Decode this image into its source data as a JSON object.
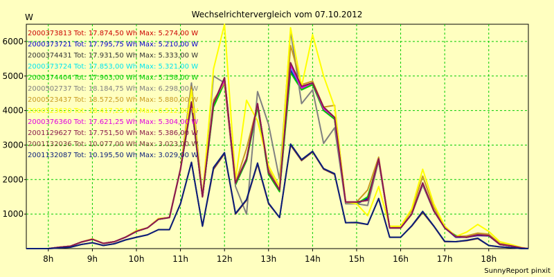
{
  "chart_data": {
    "type": "line",
    "title": "Wechselrichtervergleich vom 07.10.2012",
    "ylabel": "W",
    "xlabel": "",
    "footer": "SunnyReport pinxit",
    "ylim": [
      0,
      6500
    ],
    "xlim": [
      7.5,
      18.9
    ],
    "y_ticks": [
      1000,
      2000,
      3000,
      4000,
      5000,
      6000
    ],
    "x_ticks": [
      {
        "value": 8,
        "label": "8h"
      },
      {
        "value": 9,
        "label": "9h"
      },
      {
        "value": 10,
        "label": "10h"
      },
      {
        "value": 11,
        "label": "11h"
      },
      {
        "value": 12,
        "label": "12h"
      },
      {
        "value": 13,
        "label": "13h"
      },
      {
        "value": 14,
        "label": "14h"
      },
      {
        "value": 15,
        "label": "15h"
      },
      {
        "value": 16,
        "label": "16h"
      },
      {
        "value": 17,
        "label": "17h"
      },
      {
        "value": 18,
        "label": "18h"
      }
    ],
    "grid": true,
    "legend_position": "top-left",
    "x": [
      7.5,
      7.75,
      8.0,
      8.25,
      8.5,
      8.75,
      9.0,
      9.25,
      9.5,
      9.75,
      10.0,
      10.25,
      10.5,
      10.75,
      11.0,
      11.25,
      11.5,
      11.75,
      12.0,
      12.25,
      12.5,
      12.75,
      13.0,
      13.25,
      13.5,
      13.75,
      14.0,
      14.25,
      14.5,
      14.75,
      15.0,
      15.25,
      15.5,
      15.75,
      16.0,
      16.25,
      16.5,
      16.75,
      17.0,
      17.25,
      17.5,
      17.75,
      18.0,
      18.25,
      18.5,
      18.75,
      18.9
    ],
    "series": [
      {
        "name": "2000373813 Tot: 17.874,50 Wh Max: 5.274,00 W",
        "color": "#cc0000",
        "values": [
          0,
          0,
          0,
          40,
          70,
          190,
          270,
          150,
          200,
          330,
          500,
          600,
          850,
          900,
          2300,
          4200,
          1500,
          4200,
          4900,
          1900,
          2600,
          4200,
          2200,
          1700,
          5200,
          4650,
          4800,
          4050,
          3800,
          1350,
          1350,
          1400,
          2600,
          600,
          600,
          1000,
          1900,
          1100,
          600,
          350,
          330,
          400,
          380,
          120,
          80,
          20,
          0
        ]
      },
      {
        "name": "2000373721 Tot: 17.795,75 Wh Max: 5.210,00 W",
        "color": "#0000cc",
        "values": [
          0,
          0,
          0,
          40,
          70,
          190,
          270,
          150,
          200,
          330,
          500,
          600,
          850,
          900,
          2300,
          4200,
          1500,
          4150,
          4850,
          1850,
          2550,
          4150,
          2150,
          1700,
          5150,
          4600,
          4750,
          4000,
          3750,
          1350,
          1300,
          1450,
          2550,
          600,
          600,
          1000,
          1850,
          1100,
          600,
          330,
          330,
          380,
          370,
          120,
          80,
          20,
          0
        ]
      },
      {
        "name": "2000374431 Tot: 17.931,50 Wh Max: 5.333,00 W",
        "color": "#333333",
        "values": [
          0,
          0,
          0,
          40,
          70,
          190,
          270,
          150,
          200,
          330,
          500,
          600,
          850,
          900,
          2300,
          4250,
          1500,
          4200,
          4950,
          1900,
          2600,
          4200,
          2200,
          1700,
          5300,
          4700,
          4800,
          4100,
          3800,
          1350,
          1350,
          1400,
          2600,
          600,
          600,
          1000,
          1900,
          1100,
          600,
          350,
          330,
          400,
          380,
          120,
          80,
          20,
          0
        ]
      },
      {
        "name": "2000373724 Tot: 17.853,00 Wh Max: 5.321,00 W",
        "color": "#00e5ee",
        "values": [
          0,
          0,
          0,
          40,
          70,
          190,
          270,
          150,
          200,
          330,
          500,
          600,
          850,
          900,
          2300,
          4200,
          1500,
          4200,
          4900,
          1900,
          2600,
          4200,
          2200,
          1700,
          5250,
          4650,
          4800,
          4050,
          3800,
          1350,
          1350,
          1400,
          2600,
          600,
          600,
          1000,
          1900,
          1100,
          600,
          350,
          330,
          400,
          380,
          120,
          80,
          20,
          0
        ]
      },
      {
        "name": "2000374404 Tot: 17.903,00 Wh Max: 5.158,00 W",
        "color": "#00cc00",
        "values": [
          0,
          0,
          0,
          40,
          70,
          190,
          270,
          150,
          200,
          330,
          500,
          600,
          850,
          900,
          2300,
          4150,
          1500,
          4100,
          4800,
          1850,
          2550,
          4100,
          2150,
          1650,
          5100,
          4600,
          4750,
          4000,
          3750,
          1350,
          1300,
          1500,
          2550,
          600,
          600,
          1000,
          1850,
          1100,
          600,
          380,
          330,
          420,
          390,
          130,
          80,
          20,
          0
        ]
      },
      {
        "name": "2000502737 Tot: 18.184,75 Wh Max: 6.298,00 W",
        "color": "#808080",
        "values": [
          0,
          0,
          0,
          40,
          70,
          190,
          280,
          150,
          200,
          330,
          520,
          600,
          870,
          900,
          2300,
          4800,
          1500,
          5000,
          4800,
          1800,
          1000,
          4550,
          3600,
          2000,
          6300,
          4200,
          4600,
          3050,
          3500,
          1300,
          1300,
          1250,
          2550,
          600,
          600,
          1000,
          1850,
          1100,
          650,
          350,
          350,
          430,
          400,
          120,
          80,
          20,
          0
        ]
      },
      {
        "name": "2000523437 Tot: 18.572,50 Wh Max: 5.880,00 W",
        "color": "#c89a20",
        "values": [
          0,
          0,
          0,
          40,
          70,
          190,
          280,
          150,
          200,
          330,
          520,
          600,
          870,
          900,
          2300,
          4700,
          1500,
          4300,
          4800,
          1900,
          2900,
          4150,
          2300,
          1700,
          5880,
          4750,
          4850,
          4100,
          4150,
          1350,
          1350,
          1700,
          2650,
          600,
          650,
          1100,
          2100,
          1200,
          650,
          350,
          370,
          450,
          420,
          150,
          100,
          20,
          0
        ]
      },
      {
        "name": "2000523620 Tot: 18.417,25 Wh Max: 6.512,00 W",
        "color": "#ffff00",
        "values": [
          0,
          0,
          0,
          40,
          70,
          190,
          280,
          150,
          200,
          330,
          520,
          600,
          870,
          900,
          2300,
          4600,
          1500,
          5200,
          6500,
          2000,
          4300,
          3700,
          2400,
          1800,
          6400,
          4700,
          6200,
          5000,
          4100,
          1350,
          1300,
          950,
          1800,
          650,
          650,
          1150,
          2300,
          1300,
          650,
          350,
          480,
          700,
          500,
          200,
          120,
          30,
          0
        ]
      },
      {
        "name": "2000376360 Tot: 17.621,25 Wh Max: 5.304,00 W",
        "color": "#e000e0",
        "values": [
          0,
          0,
          0,
          40,
          70,
          190,
          270,
          150,
          200,
          330,
          500,
          600,
          850,
          900,
          2300,
          4200,
          1500,
          4200,
          4900,
          1900,
          2600,
          4200,
          2200,
          1700,
          5304,
          4650,
          4800,
          4050,
          3800,
          1350,
          1350,
          1400,
          2600,
          600,
          600,
          1000,
          1900,
          1100,
          600,
          350,
          330,
          400,
          380,
          120,
          80,
          20,
          0
        ]
      },
      {
        "name": "2001129627 Tot: 17.751,50 Wh Max: 5.386,00 W",
        "color": "#8a1a4a",
        "values": [
          0,
          0,
          0,
          40,
          70,
          190,
          270,
          150,
          200,
          330,
          500,
          600,
          850,
          900,
          2300,
          4250,
          1500,
          4200,
          4950,
          1900,
          2600,
          4200,
          2200,
          1700,
          5386,
          4700,
          4800,
          4100,
          3800,
          1350,
          1350,
          1400,
          2600,
          600,
          600,
          1000,
          1900,
          1100,
          600,
          350,
          330,
          400,
          380,
          120,
          80,
          20,
          0
        ]
      },
      {
        "name": "2001132036 Tot: 10.077,00 Wh Max: 3.023,00 W",
        "color": "#7a3a3a",
        "values": [
          0,
          0,
          0,
          20,
          40,
          120,
          170,
          90,
          140,
          250,
          330,
          400,
          550,
          550,
          1300,
          2500,
          650,
          2300,
          2750,
          1000,
          1400,
          2450,
          1300,
          900,
          3000,
          2550,
          2800,
          2300,
          2150,
          750,
          750,
          700,
          1450,
          330,
          330,
          650,
          1050,
          650,
          200,
          200,
          230,
          290,
          90,
          50,
          30,
          0,
          0
        ]
      },
      {
        "name": "2001132087 Tot: 10.195,50 Wh Max: 3.029,00 W",
        "color": "#0a1e7a",
        "values": [
          0,
          0,
          0,
          20,
          40,
          120,
          170,
          90,
          140,
          250,
          330,
          400,
          550,
          550,
          1300,
          2500,
          650,
          2350,
          2780,
          1020,
          1420,
          2480,
          1320,
          900,
          3029,
          2580,
          2820,
          2320,
          2170,
          750,
          760,
          700,
          1450,
          330,
          330,
          660,
          1080,
          660,
          210,
          200,
          240,
          300,
          90,
          50,
          30,
          0,
          0
        ]
      }
    ]
  }
}
